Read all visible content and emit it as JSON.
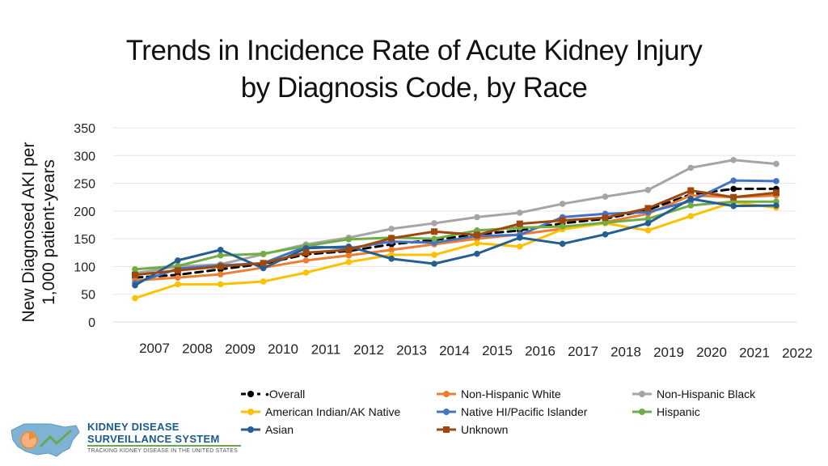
{
  "title_line1": "Trends in Incidence Rate of Acute Kidney Injury",
  "title_line2": "by Diagnosis Code, by Race",
  "logo": {
    "line1": "KIDNEY DISEASE",
    "line2": "SURVEILLANCE SYSTEM",
    "tagline": "TRACKING KIDNEY DISEASE IN THE UNITED STATES"
  },
  "chart_data": {
    "type": "line",
    "title": "Trends in Incidence Rate of Acute Kidney Injury by Diagnosis Code, by Race",
    "ylabel_line1": "New Diagnosed AKI per",
    "ylabel_line2": "1,000 patient-years",
    "xlabel": "",
    "ylim": [
      0,
      350
    ],
    "yticks": [
      0,
      50,
      100,
      150,
      200,
      250,
      300,
      350
    ],
    "grid": true,
    "legend_position": "bottom",
    "categories": [
      "2007",
      "2008",
      "2009",
      "2010",
      "2011",
      "2012",
      "2013",
      "2014",
      "2015",
      "2016",
      "2017",
      "2018",
      "2019",
      "2020",
      "2021",
      "2022"
    ],
    "series": [
      {
        "name": "Overall",
        "legend_label": "•Overall",
        "color": "#000000",
        "dashed": true,
        "marker": "circle",
        "values": [
          80,
          85,
          95,
          105,
          122,
          128,
          140,
          148,
          158,
          165,
          178,
          186,
          202,
          230,
          240,
          240
        ]
      },
      {
        "name": "Non-Hispanic White",
        "legend_label": "Non-Hispanic White",
        "color": "#ed7d31",
        "marker": "circle",
        "values": [
          75,
          80,
          86,
          98,
          111,
          120,
          130,
          140,
          150,
          158,
          168,
          180,
          195,
          228,
          225,
          228
        ]
      },
      {
        "name": "Non-Hispanic Black",
        "legend_label": "Non-Hispanic Black",
        "color": "#a5a5a5",
        "marker": "circle",
        "values": [
          88,
          100,
          104,
          122,
          140,
          152,
          168,
          178,
          189,
          197,
          213,
          226,
          238,
          278,
          292,
          285
        ]
      },
      {
        "name": "American Indian/AK Native",
        "legend_label": "American Indian/AK Native",
        "color": "#ffc000",
        "marker": "circle",
        "values": [
          43,
          68,
          68,
          73,
          89,
          108,
          121,
          121,
          142,
          136,
          167,
          178,
          165,
          191,
          216,
          206
        ]
      },
      {
        "name": "Native HI/Pacific Islander",
        "legend_label": "Native HI/Pacific Islander",
        "color": "#4472c4",
        "marker": "circle",
        "values": [
          70,
          96,
          102,
          106,
          136,
          133,
          145,
          143,
          155,
          157,
          189,
          195,
          198,
          218,
          255,
          254
        ]
      },
      {
        "name": "Hispanic",
        "legend_label": "Hispanic",
        "color": "#70ad47",
        "marker": "circle",
        "values": [
          95,
          101,
          120,
          123,
          137,
          149,
          152,
          150,
          165,
          170,
          172,
          179,
          186,
          210,
          217,
          217
        ]
      },
      {
        "name": "Asian",
        "legend_label": "Asian",
        "color": "#255e91",
        "marker": "circle",
        "values": [
          66,
          111,
          130,
          97,
          133,
          136,
          114,
          105,
          123,
          152,
          141,
          158,
          178,
          222,
          209,
          210
        ]
      },
      {
        "name": "Unknown",
        "legend_label": "Unknown",
        "color": "#9e480e",
        "marker": "square",
        "values": [
          85,
          93,
          100,
          106,
          125,
          130,
          151,
          163,
          157,
          177,
          183,
          188,
          205,
          237,
          225,
          233
        ]
      }
    ]
  }
}
